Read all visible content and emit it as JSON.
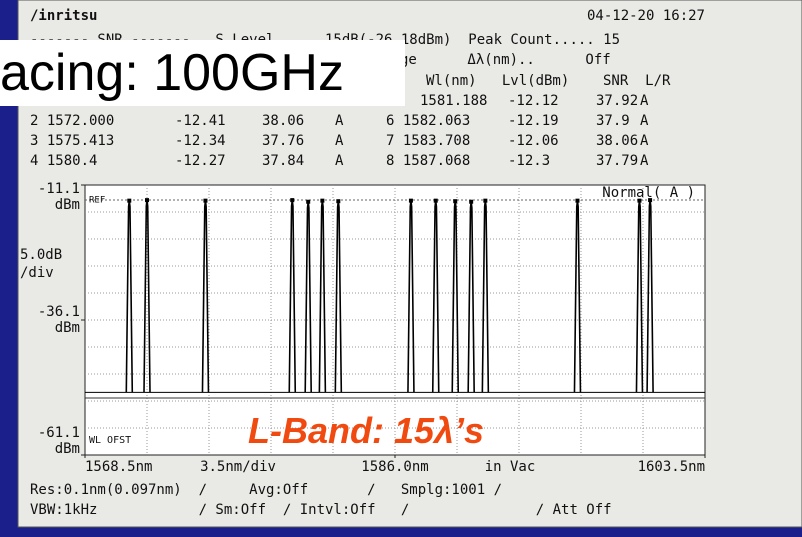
{
  "header": {
    "brand": "/inritsu",
    "datetime": "04-12-20 16:27",
    "line1": "------- SNR -------   S Level      15dB(-26.18dBm)  Peak Count..... 15",
    "line2": "ge      Δλ(nm)..      Off",
    "columns": "Wl(nm)   Lvl(dBm)    SNR  L/R"
  },
  "table": {
    "rows": [
      [
        "2 1572.000",
        "-12.41",
        "38.06",
        "A",
        "6 1582.063",
        "-12.19",
        "37.9",
        "A"
      ],
      [
        "3 1575.413",
        "-12.34",
        "37.76",
        "A",
        "7 1583.708",
        "-12.06",
        "38.06",
        "A"
      ],
      [
        "4 1580.4",
        "-12.27",
        "37.84",
        "A",
        "8 1587.068",
        "-12.3",
        "37.79",
        "A"
      ]
    ],
    "top_row": [
      "1581.188",
      "-12.12",
      "37.92",
      "A"
    ]
  },
  "overlay": {
    "spacing": "acing: 100GHz",
    "band": "L-Band: 15λ’s"
  },
  "chart_data": {
    "type": "peaks",
    "x": [
      1571.0,
      1572.0,
      1575.3,
      1580.2,
      1581.1,
      1581.9,
      1582.8,
      1586.9,
      1588.3,
      1589.4,
      1590.3,
      1591.1,
      1596.3,
      1599.8,
      1600.4
    ],
    "values": [
      -14.0,
      -13.9,
      -14.0,
      -13.9,
      -14.2,
      -14.0,
      -14.1,
      -14.0,
      -14.0,
      -14.1,
      -14.2,
      -14.0,
      -14.0,
      -14.0,
      -13.9
    ],
    "noise_floor": -49.5,
    "color": "#000000",
    "xlim": [
      1568.5,
      1603.5
    ],
    "ylim": [
      -61.1,
      -11.1
    ],
    "xticks": [
      {
        "value": 1568.5,
        "label": "1568.5nm"
      },
      {
        "value": 1586,
        "label": "1586.0nm"
      },
      {
        "value": 1603.5,
        "label": "1603.5nm"
      }
    ],
    "yticks": [
      -11.1,
      -36.1,
      -61.1
    ],
    "y_unit": "dBm",
    "y_scale": [
      "5.0dB",
      "/div"
    ],
    "x_scale": "3.5nm/div",
    "x_medium": "in Vac",
    "ref_label": "REF",
    "offset_label": "WL OFST",
    "mode_label": "Normal( A )",
    "grid": true
  },
  "footer": {
    "line1": "Res:0.1nm(0.097nm)  ∕     Avg:Off       ∕   Smplg:1001 ∕",
    "line2": "VBW:1kHz            ∕ Sm:Off  ∕ Intvl:Off   ∕               ∕ Att Off"
  }
}
